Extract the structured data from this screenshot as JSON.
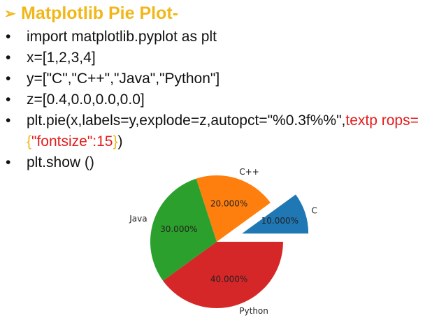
{
  "slide": {
    "title": "Matplotlib Pie Plot-",
    "title_color": "#f1b71a",
    "bullets": [
      "import matplotlib.pyplot as plt",
      "x=[1,2,3,4]",
      "y=[\"C\",\"C++\",\"Java\",\"Python\"]",
      "z=[0.4,0.0,0.0,0.0]"
    ],
    "pie_call": {
      "part1": "plt.pie(x,labels=y,explode=z,autopct=\"%0.3f%%\",",
      "part2": "textp rops=",
      "part3": "{",
      "part4": "\"fontsize\":15",
      "part5": "}",
      "part6": ")"
    },
    "show_call": "plt.show ()"
  },
  "chart_data": {
    "type": "pie",
    "categories": [
      "C",
      "C++",
      "Java",
      "Python"
    ],
    "values": [
      1,
      2,
      3,
      4
    ],
    "explode": [
      0.4,
      0.0,
      0.0,
      0.0
    ],
    "autopct_labels": [
      "10.000%",
      "20.000%",
      "30.000%",
      "40.000%"
    ],
    "colors": [
      "#1f77b4",
      "#ff7f0e",
      "#2ca02c",
      "#d62728"
    ],
    "start_angle": 0,
    "direction": "counterclockwise"
  }
}
